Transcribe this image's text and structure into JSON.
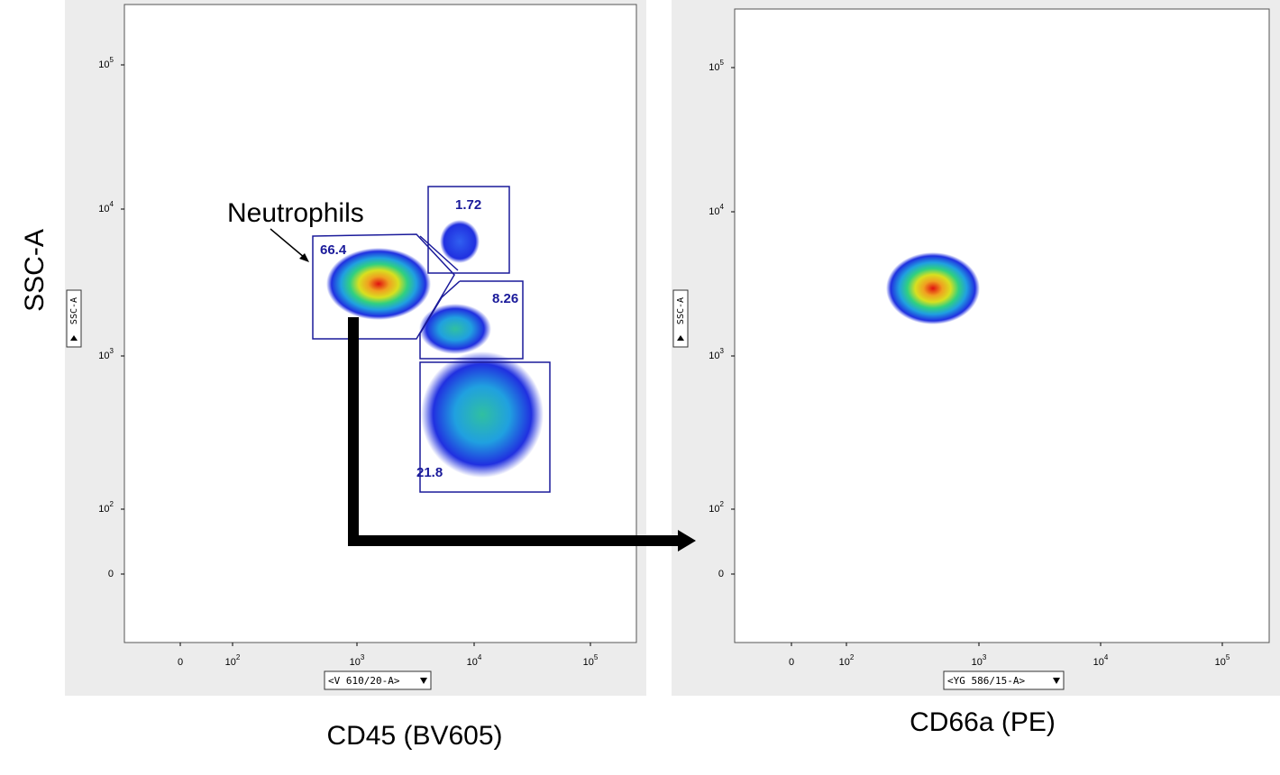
{
  "y_axis_title": "SSC-A",
  "left_panel": {
    "x_axis_title": "CD45 (BV605)",
    "y_param": "SSC-A",
    "x_param": "<V 610/20-A>",
    "annotation": "Neutrophils",
    "gates": [
      "66.4",
      "1.72",
      "8.26",
      "21.8"
    ],
    "yticks": [
      {
        "base": "10",
        "exponent": "5"
      },
      {
        "base": "10",
        "exponent": "4"
      },
      {
        "base": "10",
        "exponent": "3"
      },
      {
        "base": "10",
        "exponent": "2"
      },
      "0"
    ],
    "xticks": [
      "0",
      {
        "base": "10",
        "exponent": "2"
      },
      {
        "base": "10",
        "exponent": "3"
      },
      {
        "base": "10",
        "exponent": "4"
      },
      {
        "base": "10",
        "exponent": "5"
      }
    ]
  },
  "right_panel": {
    "x_axis_title": "CD66a (PE)",
    "y_param": "SSC-A",
    "x_param": "<YG 586/15-A>",
    "yticks": [
      {
        "base": "10",
        "exponent": "5"
      },
      {
        "base": "10",
        "exponent": "4"
      },
      {
        "base": "10",
        "exponent": "3"
      },
      {
        "base": "10",
        "exponent": "2"
      },
      "0"
    ],
    "xticks": [
      "0",
      {
        "base": "10",
        "exponent": "2"
      },
      {
        "base": "10",
        "exponent": "3"
      },
      {
        "base": "10",
        "exponent": "4"
      },
      {
        "base": "10",
        "exponent": "5"
      }
    ]
  }
}
